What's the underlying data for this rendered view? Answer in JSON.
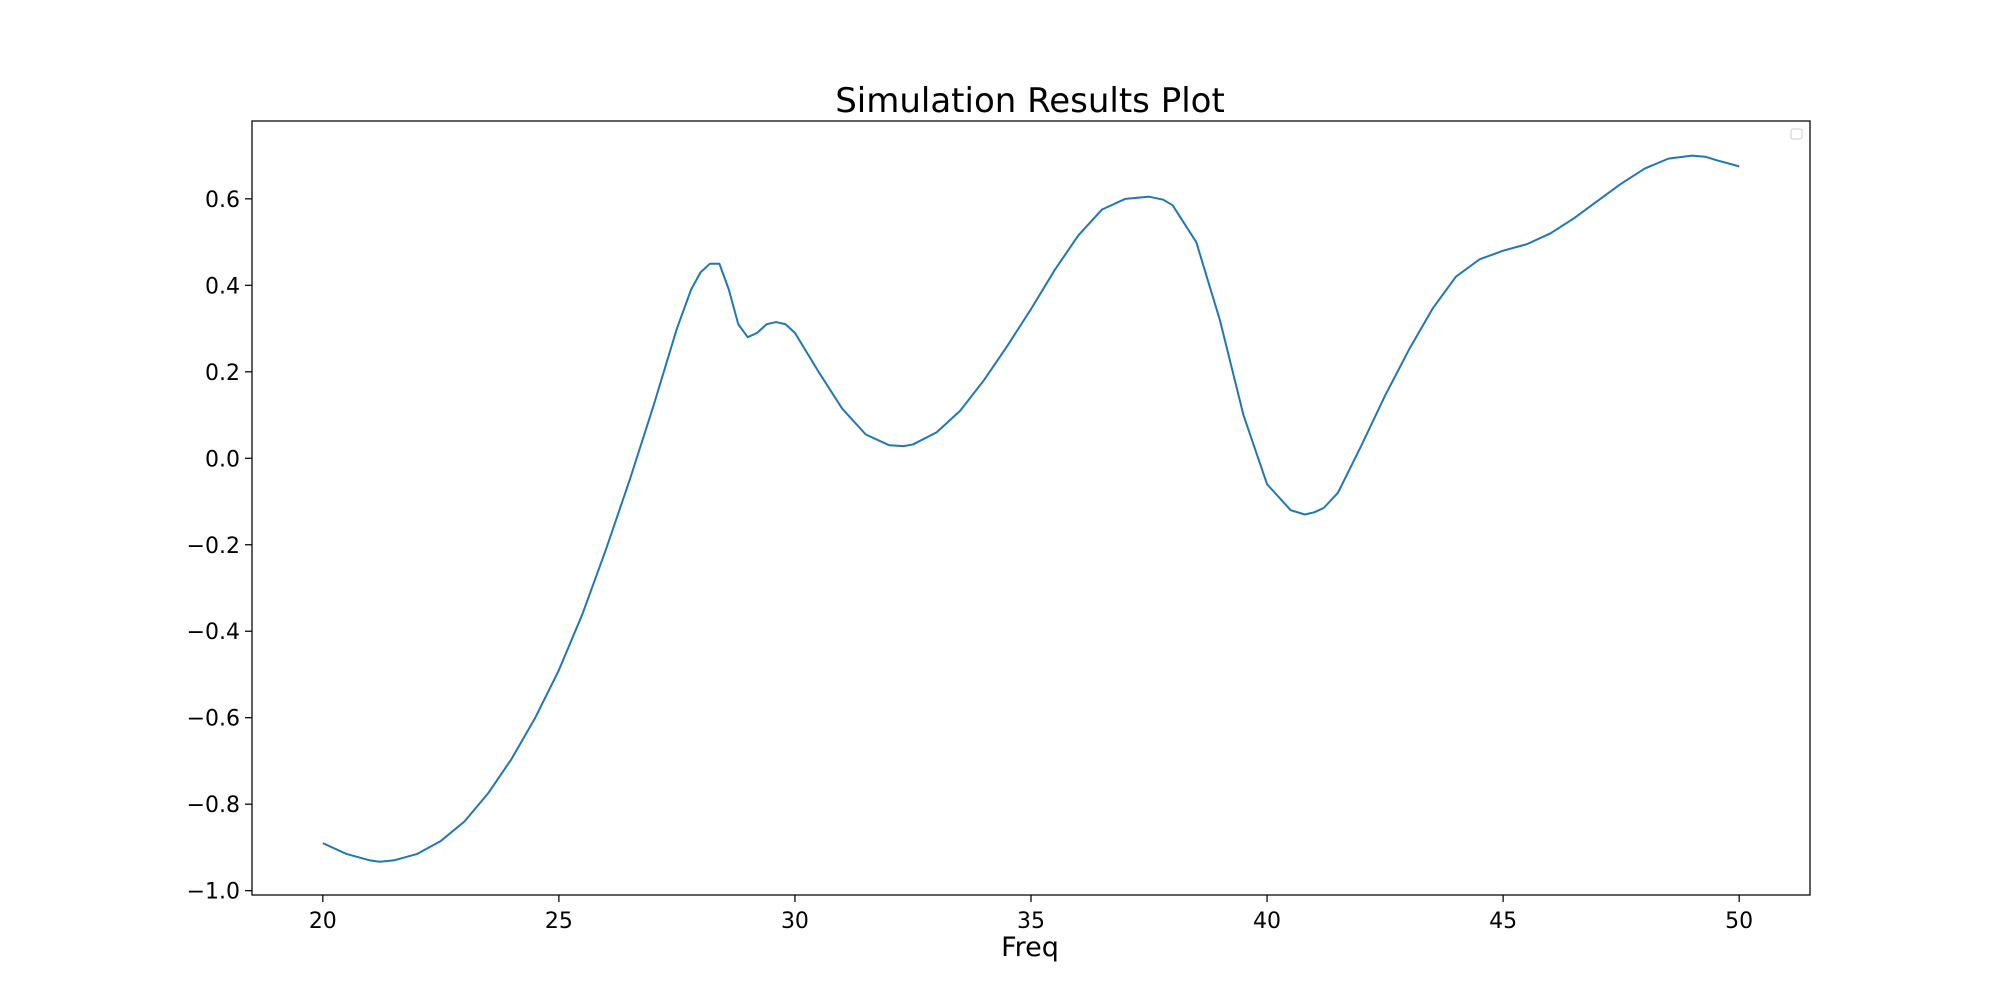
{
  "chart_data": {
    "type": "line",
    "title": "Simulation Results Plot",
    "xlabel": "Freq",
    "ylabel": "",
    "xlim": [
      18.5,
      51.5
    ],
    "ylim": [
      -1.01,
      0.78
    ],
    "xticks": [
      20,
      25,
      30,
      35,
      40,
      45,
      50
    ],
    "xtick_labels": [
      "20",
      "25",
      "30",
      "35",
      "40",
      "45",
      "50"
    ],
    "yticks": [
      -1.0,
      -0.8,
      -0.6,
      -0.4,
      -0.2,
      0.0,
      0.2,
      0.4,
      0.6
    ],
    "ytick_labels": [
      "−1.0",
      "−0.8",
      "−0.6",
      "−0.4",
      "−0.2",
      "0.0",
      "0.2",
      "0.4",
      "0.6"
    ],
    "grid": false,
    "legend": "top-right, empty",
    "series": [
      {
        "color": "#1f77b4",
        "x": [
          20.0,
          20.5,
          21.0,
          21.2,
          21.5,
          22.0,
          22.5,
          23.0,
          23.5,
          24.0,
          24.5,
          25.0,
          25.5,
          26.0,
          26.5,
          27.0,
          27.5,
          27.8,
          28.0,
          28.2,
          28.4,
          28.6,
          28.8,
          29.0,
          29.2,
          29.4,
          29.6,
          29.8,
          30.0,
          30.5,
          31.0,
          31.5,
          32.0,
          32.3,
          32.5,
          33.0,
          33.5,
          34.0,
          34.5,
          35.0,
          35.5,
          36.0,
          36.5,
          37.0,
          37.5,
          37.8,
          38.0,
          38.5,
          39.0,
          39.5,
          40.0,
          40.5,
          40.8,
          41.0,
          41.2,
          41.5,
          42.0,
          42.5,
          43.0,
          43.5,
          44.0,
          44.5,
          45.0,
          45.5,
          46.0,
          46.5,
          47.0,
          47.5,
          48.0,
          48.5,
          49.0,
          49.3,
          49.5,
          50.0
        ],
        "y": [
          -0.89,
          -0.915,
          -0.93,
          -0.933,
          -0.93,
          -0.915,
          -0.885,
          -0.84,
          -0.775,
          -0.695,
          -0.6,
          -0.49,
          -0.36,
          -0.21,
          -0.05,
          0.12,
          0.3,
          0.39,
          0.43,
          0.45,
          0.45,
          0.39,
          0.31,
          0.28,
          0.29,
          0.31,
          0.315,
          0.31,
          0.29,
          0.2,
          0.115,
          0.055,
          0.03,
          0.028,
          0.032,
          0.06,
          0.11,
          0.18,
          0.26,
          0.345,
          0.435,
          0.515,
          0.575,
          0.6,
          0.605,
          0.598,
          0.585,
          0.5,
          0.32,
          0.1,
          -0.06,
          -0.12,
          -0.13,
          -0.125,
          -0.115,
          -0.08,
          0.03,
          0.145,
          0.25,
          0.345,
          0.42,
          0.46,
          0.48,
          0.495,
          0.52,
          0.555,
          0.595,
          0.635,
          0.67,
          0.693,
          0.7,
          0.697,
          0.69,
          0.675
        ]
      }
    ]
  }
}
